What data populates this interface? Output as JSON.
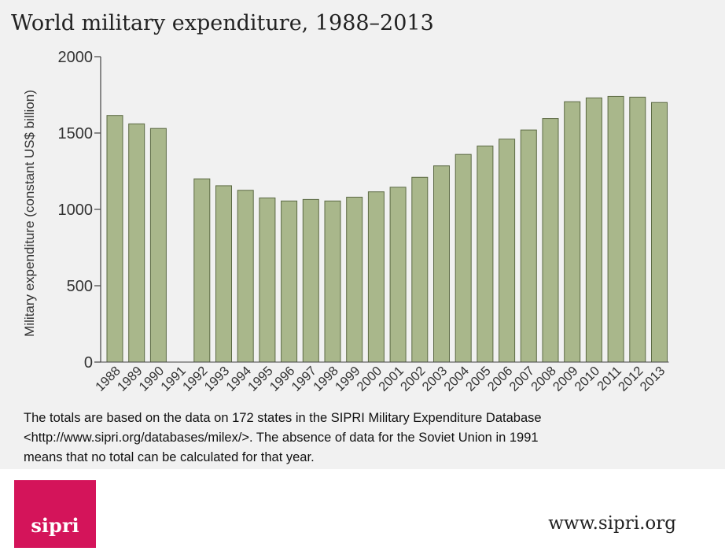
{
  "chart_data": {
    "type": "bar",
    "title": "World military expenditure, 1988–2013",
    "xlabel": "",
    "ylabel": "Military expenditure (constant US$ billion)",
    "ylim": [
      0,
      2000
    ],
    "yticks": [
      "0",
      "500",
      "1000",
      "1500",
      "2000"
    ],
    "categories": [
      "1988",
      "1989",
      "1990",
      "1991",
      "1992",
      "1993",
      "1994",
      "1995",
      "1996",
      "1997",
      "1998",
      "1999",
      "2000",
      "2001",
      "2002",
      "2003",
      "2004",
      "2005",
      "2006",
      "2007",
      "2008",
      "2009",
      "2010",
      "2011",
      "2012",
      "2013"
    ],
    "values": [
      1615,
      1560,
      1530,
      null,
      1200,
      1155,
      1125,
      1075,
      1055,
      1065,
      1055,
      1080,
      1115,
      1145,
      1210,
      1285,
      1360,
      1415,
      1460,
      1520,
      1595,
      1705,
      1730,
      1740,
      1735,
      1700
    ],
    "bar_color": "#a9b78b",
    "bar_stroke": "#5c6a44",
    "grid": false
  },
  "note": {
    "lines": [
      "The totals are based on the data on 172 states in the SIPRI Military Expenditure Database",
      "<http://www.sipri.org/databases/milex/>. The absence of data for the Soviet Union in 1991",
      "means that no total can be calculated for that year."
    ]
  },
  "logo": {
    "text": "sipri",
    "color": "#d4145a"
  },
  "website": "www.sipri.org"
}
